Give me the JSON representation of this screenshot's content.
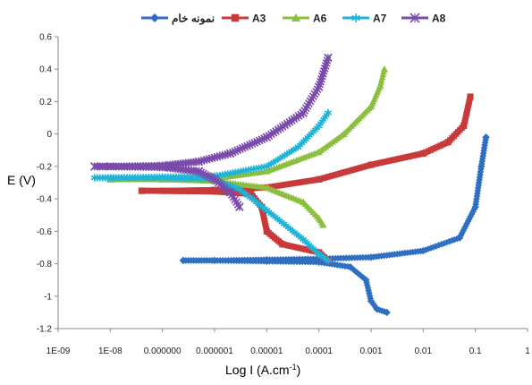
{
  "chart_data": {
    "type": "line",
    "xlabel": "Log I (A.cm",
    "xlabel_sup": "-1",
    "xlabel_close": ")",
    "ylabel": "E (V)",
    "x_scale": "log",
    "xlim": [
      1e-09,
      1
    ],
    "ylim": [
      -1.2,
      0.6
    ],
    "x_tick_labels": [
      "1E-09",
      "1E-08",
      "0.000000",
      "0.000001",
      "0.00001",
      "0.0001",
      "0.001",
      "0.01",
      "0.1",
      "1"
    ],
    "y_tick_labels": [
      "0.6",
      "0.4",
      "0.2",
      "0",
      "-0.2",
      "-0.4",
      "-0.6",
      "-0.8",
      "-1",
      "-1.2"
    ],
    "y_tick_values": [
      0.6,
      0.4,
      0.2,
      0,
      -0.2,
      -0.4,
      -0.6,
      -0.8,
      -1,
      -1.2
    ],
    "grid": false,
    "legend_position": "top",
    "series": [
      {
        "name": "نمونه خام",
        "color": "#2e6fc3",
        "marker": "diamond",
        "anodic": [
          [
            2.5e-07,
            -0.78
          ],
          [
            1e-06,
            -0.78
          ],
          [
            1e-05,
            -0.775
          ],
          [
            0.0001,
            -0.77
          ],
          [
            0.001,
            -0.76
          ],
          [
            0.01,
            -0.72
          ],
          [
            0.05,
            -0.64
          ],
          [
            0.1,
            -0.45
          ],
          [
            0.13,
            -0.2
          ],
          [
            0.16,
            -0.02
          ]
        ],
        "cathodic": [
          [
            2.5e-07,
            -0.78
          ],
          [
            1e-06,
            -0.78
          ],
          [
            1e-05,
            -0.785
          ],
          [
            0.0001,
            -0.79
          ],
          [
            0.0004,
            -0.82
          ],
          [
            0.0008,
            -0.9
          ],
          [
            0.001,
            -1.03
          ],
          [
            0.0013,
            -1.08
          ],
          [
            0.002,
            -1.1
          ]
        ]
      },
      {
        "name": "A3",
        "color": "#c83a3a",
        "marker": "square",
        "anodic": [
          [
            4e-08,
            -0.35
          ],
          [
            1e-07,
            -0.35
          ],
          [
            1e-06,
            -0.345
          ],
          [
            1e-05,
            -0.33
          ],
          [
            0.0001,
            -0.28
          ],
          [
            0.001,
            -0.19
          ],
          [
            0.01,
            -0.12
          ],
          [
            0.03,
            -0.05
          ],
          [
            0.06,
            0.05
          ],
          [
            0.08,
            0.23
          ]
        ],
        "cathodic": [
          [
            4e-08,
            -0.35
          ],
          [
            1e-06,
            -0.355
          ],
          [
            5e-06,
            -0.37
          ],
          [
            8e-06,
            -0.45
          ],
          [
            1e-05,
            -0.6
          ],
          [
            2e-05,
            -0.68
          ],
          [
            0.0001,
            -0.73
          ],
          [
            0.00015,
            -0.78
          ]
        ]
      },
      {
        "name": "A6",
        "color": "#8cbf3f",
        "marker": "triangle",
        "anodic": [
          [
            1e-08,
            -0.28
          ],
          [
            1e-07,
            -0.28
          ],
          [
            1e-06,
            -0.275
          ],
          [
            1e-05,
            -0.23
          ],
          [
            0.0001,
            -0.11
          ],
          [
            0.0003,
            0.0
          ],
          [
            0.001,
            0.17
          ],
          [
            0.0015,
            0.3
          ],
          [
            0.0018,
            0.4
          ]
        ],
        "cathodic": [
          [
            1e-08,
            -0.28
          ],
          [
            1e-07,
            -0.28
          ],
          [
            1e-06,
            -0.29
          ],
          [
            1e-05,
            -0.33
          ],
          [
            5e-05,
            -0.42
          ],
          [
            0.0001,
            -0.52
          ],
          [
            0.00012,
            -0.56
          ]
        ]
      },
      {
        "name": "A7",
        "color": "#1fb4d8",
        "marker": "star",
        "anodic": [
          [
            5e-09,
            -0.27
          ],
          [
            1e-08,
            -0.27
          ],
          [
            1e-07,
            -0.265
          ],
          [
            1e-06,
            -0.26
          ],
          [
            1e-05,
            -0.2
          ],
          [
            4e-05,
            -0.08
          ],
          [
            0.0001,
            0.05
          ],
          [
            0.00015,
            0.13
          ]
        ],
        "cathodic": [
          [
            5e-09,
            -0.27
          ],
          [
            1e-07,
            -0.27
          ],
          [
            1e-06,
            -0.28
          ],
          [
            3e-06,
            -0.34
          ],
          [
            1e-05,
            -0.47
          ],
          [
            5e-05,
            -0.65
          ],
          [
            0.0001,
            -0.74
          ],
          [
            0.00015,
            -0.78
          ]
        ]
      },
      {
        "name": "A8",
        "color": "#7b4bab",
        "marker": "x",
        "anodic": [
          [
            5e-09,
            -0.2
          ],
          [
            1e-08,
            -0.2
          ],
          [
            1e-07,
            -0.195
          ],
          [
            5e-07,
            -0.17
          ],
          [
            2e-06,
            -0.12
          ],
          [
            1e-05,
            -0.02
          ],
          [
            5e-05,
            0.13
          ],
          [
            0.0001,
            0.29
          ],
          [
            0.00015,
            0.47
          ]
        ],
        "cathodic": [
          [
            5e-09,
            -0.2
          ],
          [
            1e-07,
            -0.205
          ],
          [
            5e-07,
            -0.23
          ],
          [
            1e-06,
            -0.28
          ],
          [
            2e-06,
            -0.36
          ],
          [
            3e-06,
            -0.45
          ]
        ]
      }
    ]
  }
}
